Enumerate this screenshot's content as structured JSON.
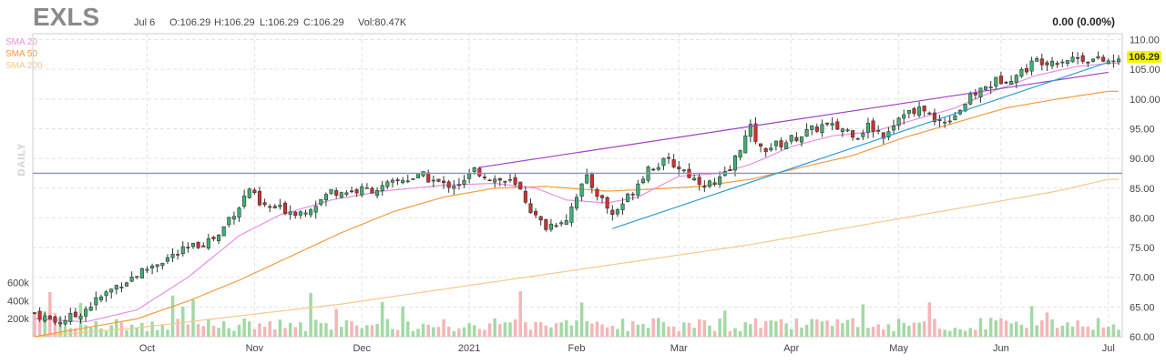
{
  "header": {
    "ticker": "EXLS",
    "date": "Jul 6",
    "open": "O:106.29",
    "high": "H:106.29",
    "low": "L:106.29",
    "close": "C:106.29",
    "volume": "Vol:80.47K",
    "change": "0.00 (0.00%)",
    "period": "DAILY"
  },
  "legend": [
    {
      "label": "SMA 20",
      "color": "#e88fe0"
    },
    {
      "label": "SMA 50",
      "color": "#f39c3c"
    },
    {
      "label": "SMA 200",
      "color": "#f7c98a"
    }
  ],
  "price_label": {
    "text": "106.29",
    "bg": "#f4f40a"
  },
  "colors": {
    "up": "#3cb371",
    "down": "#d32f2f",
    "vol_up": "#a3d9a5",
    "vol_down": "#f4b6b8",
    "sma20": "#e88fe0",
    "sma50": "#f39c3c",
    "sma200": "#f7c98a",
    "trend_upper": "#a13fc4",
    "trend_lower": "#2a9fd6",
    "hline": "#8c8cd6"
  },
  "chart_data": {
    "type": "candlestick",
    "x_axis": {
      "labels": [
        "Oct",
        "Nov",
        "Dec",
        "2021",
        "Feb",
        "Mar",
        "Apr",
        "May",
        "Jun",
        "Jul"
      ],
      "label_positions": [
        22,
        43,
        64,
        85,
        106,
        126,
        148,
        169,
        189,
        210
      ],
      "range": [
        0,
        212
      ]
    },
    "y_axis": {
      "ticks": [
        "110.00",
        "105.00",
        "100.00",
        "95.00",
        "90.00",
        "85.00",
        "80.00",
        "75.00",
        "70.00",
        "65.00",
        "60.00"
      ],
      "range": [
        60,
        111
      ]
    },
    "volume_axis": {
      "ticks": [
        "600k",
        "400k",
        "200k"
      ],
      "range": [
        0,
        600000
      ]
    },
    "horizontal_line": 87.5,
    "trendlines": [
      {
        "name": "upper",
        "from": [
          87,
          88.5
        ],
        "to": [
          210,
          104.5
        ]
      },
      {
        "name": "lower",
        "from": [
          113,
          78.2
        ],
        "to": [
          210,
          106.2
        ]
      }
    ],
    "ohlc_anchors": [
      [
        0,
        64
      ],
      [
        4,
        62.5
      ],
      [
        8,
        63.5
      ],
      [
        12,
        66
      ],
      [
        16,
        68.5
      ],
      [
        20,
        70.5
      ],
      [
        24,
        72.5
      ],
      [
        28,
        74
      ],
      [
        32,
        75.5
      ],
      [
        36,
        77
      ],
      [
        38,
        80
      ],
      [
        40,
        82
      ],
      [
        42,
        85
      ],
      [
        44,
        82
      ],
      [
        48,
        81.5
      ],
      [
        52,
        81
      ],
      [
        56,
        83
      ],
      [
        58,
        84.5
      ],
      [
        62,
        84.5
      ],
      [
        68,
        85
      ],
      [
        72,
        86.5
      ],
      [
        76,
        87
      ],
      [
        80,
        85.5
      ],
      [
        84,
        86
      ],
      [
        86,
        88
      ],
      [
        90,
        86.5
      ],
      [
        93,
        86
      ],
      [
        95,
        84.5
      ],
      [
        98,
        80
      ],
      [
        100,
        78.5
      ],
      [
        104,
        80
      ],
      [
        106,
        84
      ],
      [
        108,
        86.5
      ],
      [
        111,
        83
      ],
      [
        113,
        80.5
      ],
      [
        116,
        83.5
      ],
      [
        120,
        88.5
      ],
      [
        124,
        89.5
      ],
      [
        127,
        88
      ],
      [
        129,
        86.5
      ],
      [
        133,
        85.5
      ],
      [
        136,
        88
      ],
      [
        138,
        92
      ],
      [
        140,
        95
      ],
      [
        142,
        91.5
      ],
      [
        146,
        92.5
      ],
      [
        150,
        94
      ],
      [
        154,
        95.5
      ],
      [
        158,
        95
      ],
      [
        161,
        94
      ],
      [
        163,
        95.5
      ],
      [
        166,
        94
      ],
      [
        168,
        96
      ],
      [
        170,
        98
      ],
      [
        172,
        97.5
      ],
      [
        174,
        98.5
      ],
      [
        176,
        96
      ],
      [
        178,
        96.5
      ],
      [
        180,
        97.5
      ],
      [
        184,
        101
      ],
      [
        188,
        103
      ],
      [
        192,
        104
      ],
      [
        196,
        106.5
      ],
      [
        200,
        106.5
      ],
      [
        204,
        107
      ],
      [
        208,
        106.5
      ],
      [
        210,
        106.3
      ]
    ],
    "sma20_anchors": [
      [
        0,
        63
      ],
      [
        10,
        62.5
      ],
      [
        20,
        64.5
      ],
      [
        30,
        70
      ],
      [
        40,
        77
      ],
      [
        48,
        80.5
      ],
      [
        58,
        83
      ],
      [
        68,
        84.5
      ],
      [
        80,
        85.5
      ],
      [
        90,
        85.8
      ],
      [
        98,
        85
      ],
      [
        104,
        83
      ],
      [
        112,
        82.5
      ],
      [
        118,
        83.5
      ],
      [
        126,
        87
      ],
      [
        134,
        87.5
      ],
      [
        140,
        89
      ],
      [
        148,
        92
      ],
      [
        156,
        93.8
      ],
      [
        164,
        94.5
      ],
      [
        172,
        96.5
      ],
      [
        180,
        98.5
      ],
      [
        188,
        101.5
      ],
      [
        196,
        104
      ],
      [
        204,
        105.5
      ],
      [
        210,
        106
      ]
    ],
    "sma50_anchors": [
      [
        0,
        60
      ],
      [
        10,
        61.5
      ],
      [
        20,
        63
      ],
      [
        30,
        66
      ],
      [
        40,
        69.5
      ],
      [
        50,
        73.5
      ],
      [
        60,
        77.5
      ],
      [
        70,
        81
      ],
      [
        80,
        83.5
      ],
      [
        90,
        85
      ],
      [
        100,
        85.3
      ],
      [
        112,
        84.5
      ],
      [
        120,
        84.8
      ],
      [
        130,
        85.3
      ],
      [
        140,
        86.5
      ],
      [
        150,
        88.5
      ],
      [
        160,
        90.5
      ],
      [
        170,
        93.5
      ],
      [
        180,
        96
      ],
      [
        190,
        98.5
      ],
      [
        200,
        100
      ],
      [
        210,
        101.3
      ]
    ],
    "sma200_anchors": [
      [
        0,
        60
      ],
      [
        20,
        61.5
      ],
      [
        40,
        63.5
      ],
      [
        60,
        65.5
      ],
      [
        80,
        68
      ],
      [
        100,
        70.5
      ],
      [
        120,
        73
      ],
      [
        140,
        75.5
      ],
      [
        160,
        78.5
      ],
      [
        180,
        81.5
      ],
      [
        200,
        84.5
      ],
      [
        210,
        86.5
      ]
    ]
  }
}
